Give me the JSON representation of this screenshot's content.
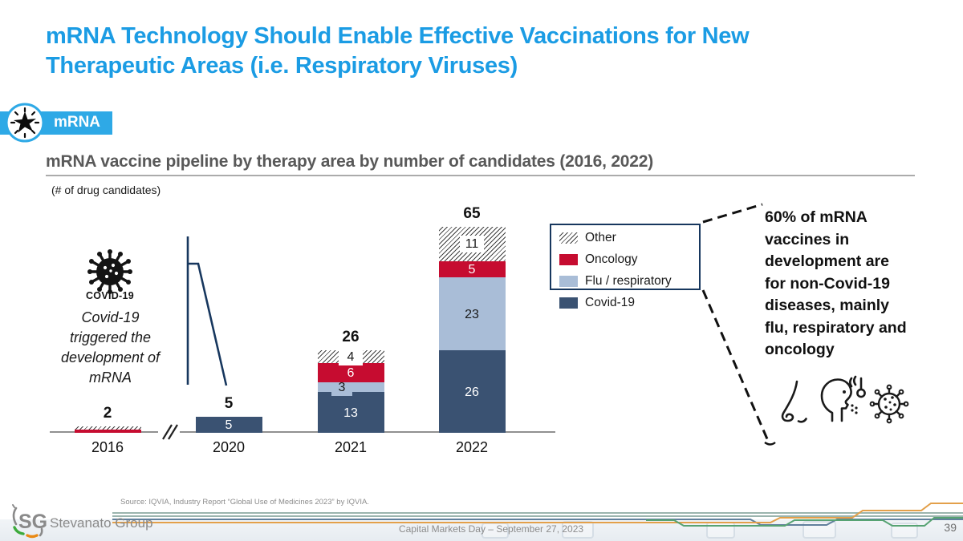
{
  "slide": {
    "title": "mRNA Technology Should Enable Effective Vaccinations for New Therapeutic Areas (i.e. Respiratory Viruses)",
    "badge": "mRNA",
    "subtitle": "mRNA vaccine pipeline by therapy area by number of candidates (2016, 2022)",
    "source": "Source: IQVIA, Industry Report “Global Use of Medicines 2023” by IQVIA.",
    "footer_caption": "Capital Markets Day – September 27, 2023",
    "page_number": "39",
    "logo": {
      "sg": "SG",
      "name": "Stevanato Group"
    }
  },
  "annotation": {
    "covid_icon_label": "COVID-19",
    "covid_text": "Covid-19\ntriggered the\ndevelopment of\nmRNA",
    "callout_text": "60% of mRNA\nvaccines in\ndevelopment are\nfor non-Covid-19\ndiseases, mainly\nflu, respiratory and\noncology"
  },
  "legend": {
    "items": [
      {
        "key": "other",
        "label": "Other"
      },
      {
        "key": "oncology",
        "label": "Oncology"
      },
      {
        "key": "flu",
        "label": "Flu / respiratory"
      },
      {
        "key": "covid",
        "label": "Covid-19"
      }
    ]
  },
  "colors": {
    "accent_blue": "#1B9CE4",
    "badge_blue": "#2EA9E6",
    "navy": "#3A5272",
    "light_blue": "#A9BDD7",
    "crimson": "#C60C30",
    "subtitle_gray": "#595959",
    "callout_line_navy": "#17375E",
    "footer_sage": "#9BB5AE",
    "footer_orange": "#E3A04A",
    "footer_green": "#57A373",
    "footer_slate": "#61809C"
  },
  "chart_data": {
    "type": "bar",
    "stacked": true,
    "title": "mRNA vaccine pipeline by therapy area by number of candidates (2016, 2022)",
    "ylabel": "(# of drug candidates)",
    "categories": [
      "2016",
      "2020",
      "2021",
      "2022"
    ],
    "series": [
      {
        "name": "Covid-19",
        "key": "covid",
        "color": "#3A5272",
        "values": [
          0,
          5,
          13,
          26
        ]
      },
      {
        "name": "Flu / respiratory",
        "key": "flu",
        "color": "#A9BDD7",
        "values": [
          0,
          0,
          3,
          23
        ]
      },
      {
        "name": "Oncology",
        "key": "oncology",
        "color": "#C60C30",
        "values": [
          1,
          0,
          6,
          5
        ]
      },
      {
        "name": "Other",
        "key": "other",
        "color": "hatch",
        "values": [
          1,
          0,
          4,
          11
        ]
      }
    ],
    "totals": [
      2,
      5,
      26,
      65
    ],
    "axis_break_between": [
      "2016",
      "2020"
    ],
    "grid": false,
    "legend_position": "right"
  }
}
